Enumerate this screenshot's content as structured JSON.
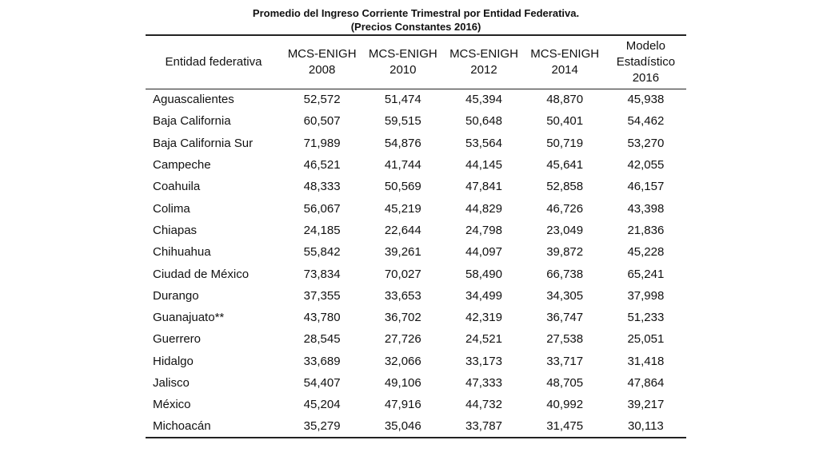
{
  "title_line1": "Promedio del Ingreso Corriente Trimestral por Entidad Federativa.",
  "title_line2": "(Precios Constantes 2016)",
  "headers": [
    [
      "Entidad federativa"
    ],
    [
      "MCS-ENIGH",
      "2008"
    ],
    [
      "MCS-ENIGH",
      "2010"
    ],
    [
      "MCS-ENIGH",
      "2012"
    ],
    [
      "MCS-ENIGH",
      "2014"
    ],
    [
      "Modelo",
      "Estadístico",
      "2016"
    ]
  ],
  "rows": [
    [
      "Aguascalientes",
      "52,572",
      "51,474",
      "45,394",
      "48,870",
      "45,938"
    ],
    [
      "Baja California",
      "60,507",
      "59,515",
      "50,648",
      "50,401",
      "54,462"
    ],
    [
      "Baja California Sur",
      "71,989",
      "54,876",
      "53,564",
      "50,719",
      "53,270"
    ],
    [
      "Campeche",
      "46,521",
      "41,744",
      "44,145",
      "45,641",
      "42,055"
    ],
    [
      "Coahuila",
      "48,333",
      "50,569",
      "47,841",
      "52,858",
      "46,157"
    ],
    [
      "Colima",
      "56,067",
      "45,219",
      "44,829",
      "46,726",
      "43,398"
    ],
    [
      "Chiapas",
      "24,185",
      "22,644",
      "24,798",
      "23,049",
      "21,836"
    ],
    [
      "Chihuahua",
      "55,842",
      "39,261",
      "44,097",
      "39,872",
      "45,228"
    ],
    [
      "Ciudad de México",
      "73,834",
      "70,027",
      "58,490",
      "66,738",
      "65,241"
    ],
    [
      "Durango",
      "37,355",
      "33,653",
      "34,499",
      "34,305",
      "37,998"
    ],
    [
      "Guanajuato**",
      "43,780",
      "36,702",
      "42,319",
      "36,747",
      "51,233"
    ],
    [
      "Guerrero",
      "28,545",
      "27,726",
      "24,521",
      "27,538",
      "25,051"
    ],
    [
      "Hidalgo",
      "33,689",
      "32,066",
      "33,173",
      "33,717",
      "31,418"
    ],
    [
      "Jalisco",
      "54,407",
      "49,106",
      "47,333",
      "48,705",
      "47,864"
    ],
    [
      "México",
      "45,204",
      "47,916",
      "44,732",
      "40,992",
      "39,217"
    ],
    [
      "Michoacán",
      "35,279",
      "35,046",
      "33,787",
      "31,475",
      "30,113"
    ]
  ]
}
